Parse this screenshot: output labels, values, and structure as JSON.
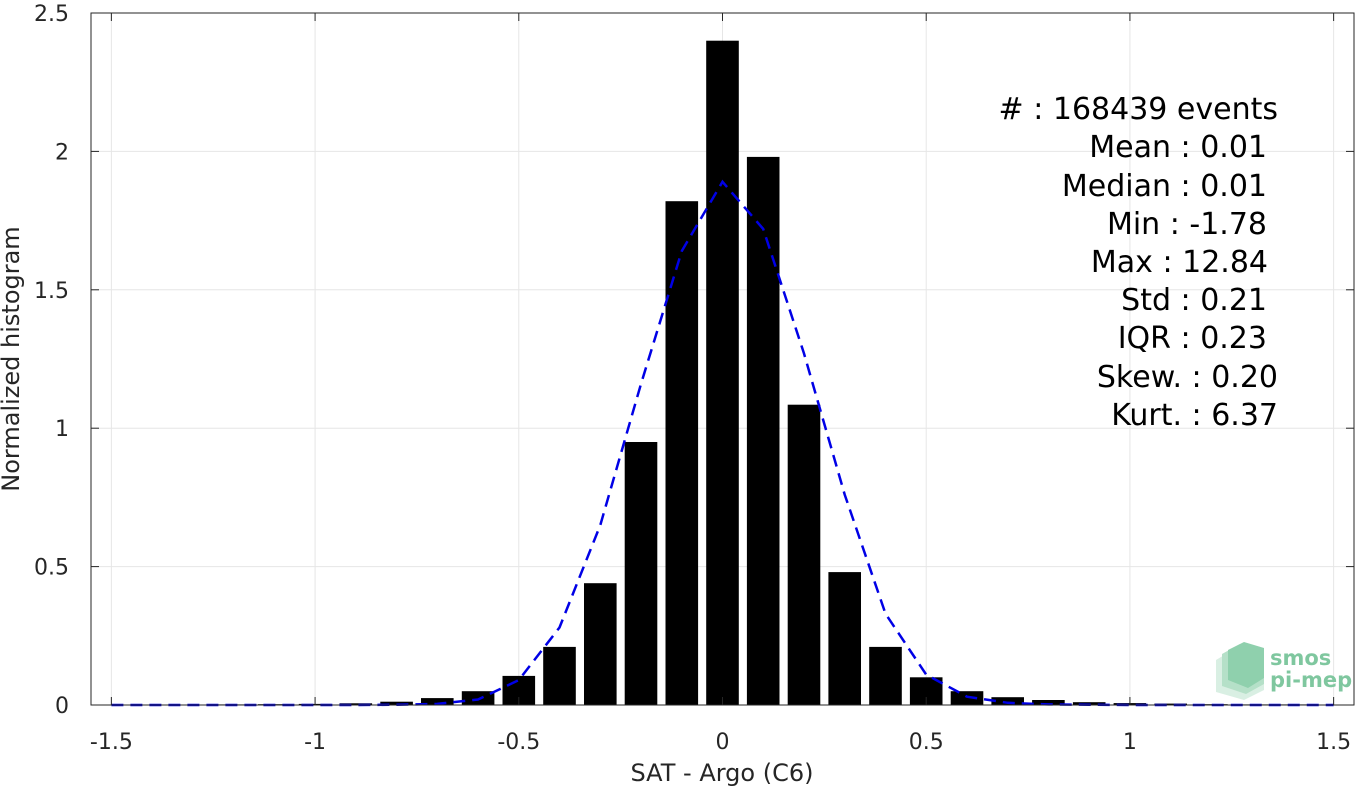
{
  "chart_data": {
    "type": "bar",
    "xlabel": "SAT - Argo (C6)",
    "ylabel": "Normalized histogram",
    "xlim": [
      -1.55,
      1.55
    ],
    "ylim": [
      0,
      2.5
    ],
    "grid": true,
    "x_ticks": [
      "-1.5",
      "-1",
      "-0.5",
      "0",
      "0.5",
      "1",
      "1.5"
    ],
    "x_tick_values": [
      -1.5,
      -1,
      -0.5,
      0,
      0.5,
      1,
      1.5
    ],
    "y_ticks": [
      "0",
      "0.5",
      "1",
      "1.5",
      "2",
      "2.5"
    ],
    "y_tick_values": [
      0,
      0.5,
      1,
      1.5,
      2,
      2.5
    ],
    "bar_width": 0.08,
    "bars": {
      "x": [
        -1.5,
        -1.4,
        -1.3,
        -1.2,
        -1.1,
        -1.0,
        -0.9,
        -0.8,
        -0.7,
        -0.6,
        -0.5,
        -0.4,
        -0.3,
        -0.2,
        -0.1,
        0.0,
        0.1,
        0.2,
        0.3,
        0.4,
        0.5,
        0.6,
        0.7,
        0.8,
        0.9,
        1.0,
        1.1,
        1.2,
        1.3,
        1.4,
        1.5
      ],
      "values": [
        0.001,
        0.001,
        0.001,
        0.002,
        0.003,
        0.004,
        0.006,
        0.012,
        0.025,
        0.05,
        0.105,
        0.21,
        0.44,
        0.95,
        1.82,
        2.4,
        1.98,
        1.085,
        0.48,
        0.21,
        0.1,
        0.05,
        0.028,
        0.018,
        0.01,
        0.007,
        0.005,
        0.003,
        0.002,
        0.002,
        0.001
      ]
    },
    "fit": {
      "name": "",
      "style": "dashed",
      "color": "#0000e6",
      "x": [
        -1.5,
        -1.3,
        -1.1,
        -0.9,
        -0.8,
        -0.7,
        -0.6,
        -0.5,
        -0.4,
        -0.3,
        -0.2,
        -0.1,
        0.0,
        0.1,
        0.2,
        0.3,
        0.4,
        0.5,
        0.6,
        0.7,
        0.8,
        0.9,
        1.0,
        1.1,
        1.3,
        1.5
      ],
      "values": [
        0,
        0,
        0,
        0,
        0.001,
        0.004,
        0.02,
        0.09,
        0.28,
        0.65,
        1.16,
        1.64,
        1.89,
        1.72,
        1.27,
        0.76,
        0.33,
        0.11,
        0.03,
        0.008,
        0.002,
        0.001,
        0,
        0,
        0,
        0
      ]
    },
    "stats": [
      {
        "label": "#  : 168439 events"
      },
      {
        "label": "Mean : 0.01"
      },
      {
        "label": "Median : 0.01"
      },
      {
        "label": "Min : -1.78"
      },
      {
        "label": "Max : 12.84"
      },
      {
        "label": "Std : 0.21"
      },
      {
        "label": "IQR : 0.23"
      },
      {
        "label": "Skew. : 0.20"
      },
      {
        "label": "Kurt. : 6.37"
      }
    ],
    "colors": {
      "bar": "#000000",
      "grid": "#e6e6e6",
      "axis": "#262626",
      "logo": "#7fc79f"
    }
  },
  "logo": {
    "line1": "smos",
    "line2": "pi-mep"
  }
}
